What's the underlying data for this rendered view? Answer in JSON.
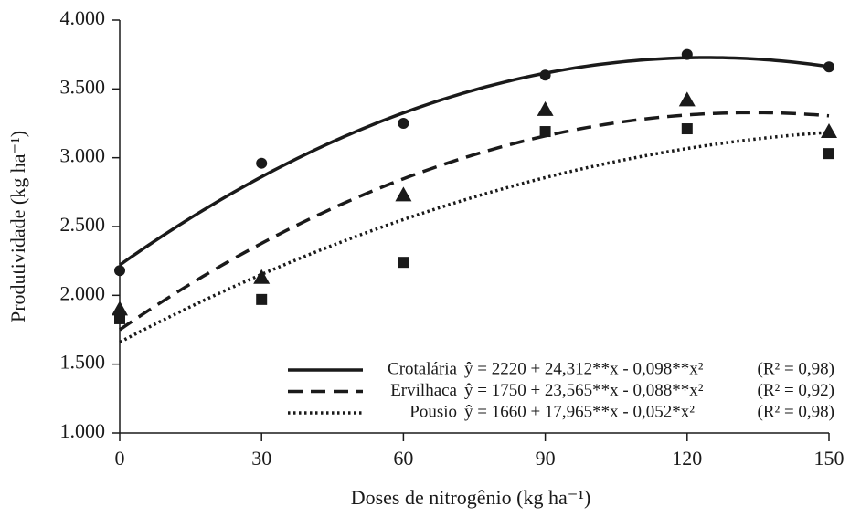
{
  "chart_data": {
    "type": "scatter",
    "x_label": "Doses de nitrogênio (kg ha⁻¹)",
    "y_label": "Produtividade (kg ha⁻¹)",
    "x": [
      0,
      30,
      60,
      90,
      120,
      150
    ],
    "xlim": [
      0,
      150
    ],
    "xticks": [
      0,
      30,
      60,
      90,
      120,
      150
    ],
    "ylim": [
      1000,
      4000
    ],
    "yticks": [
      {
        "value": 1000,
        "label": "1.000"
      },
      {
        "value": 1500,
        "label": "1.500"
      },
      {
        "value": 2000,
        "label": "2.000"
      },
      {
        "value": 2500,
        "label": "2.500"
      },
      {
        "value": 3000,
        "label": "3.000"
      },
      {
        "value": 3500,
        "label": "3.500"
      },
      {
        "value": 4000,
        "label": "4.000"
      }
    ],
    "legend": "lower right",
    "series": [
      {
        "name": "Crotalária",
        "color": "#1a1a1a",
        "marker": "circle",
        "dash": "solid",
        "values": [
          2180,
          2960,
          3250,
          3600,
          3750,
          3660
        ],
        "fit": [
          2220,
          24.312,
          -0.098
        ],
        "equation": "ŷ = 2220 + 24,312**x - 0,098**x²",
        "r2": "(R² = 0,98)"
      },
      {
        "name": "Ervilhaca",
        "color": "#1a1a1a",
        "marker": "triangle",
        "dash": "dashed",
        "values": [
          1900,
          2130,
          2730,
          3350,
          3420,
          3190
        ],
        "fit": [
          1750,
          23.565,
          -0.088
        ],
        "equation": "ŷ = 1750 + 23,565**x - 0,088**x²",
        "r2": "(R² = 0,92)"
      },
      {
        "name": "Pousio",
        "color": "#1a1a1a",
        "marker": "square",
        "dash": "dotted",
        "values": [
          1830,
          1970,
          2240,
          3190,
          3210,
          3030
        ],
        "fit": [
          1660,
          17.965,
          -0.052
        ],
        "equation": "ŷ = 1660 + 17,965**x - 0,052*x²",
        "r2": "(R² = 0,98)"
      }
    ]
  }
}
